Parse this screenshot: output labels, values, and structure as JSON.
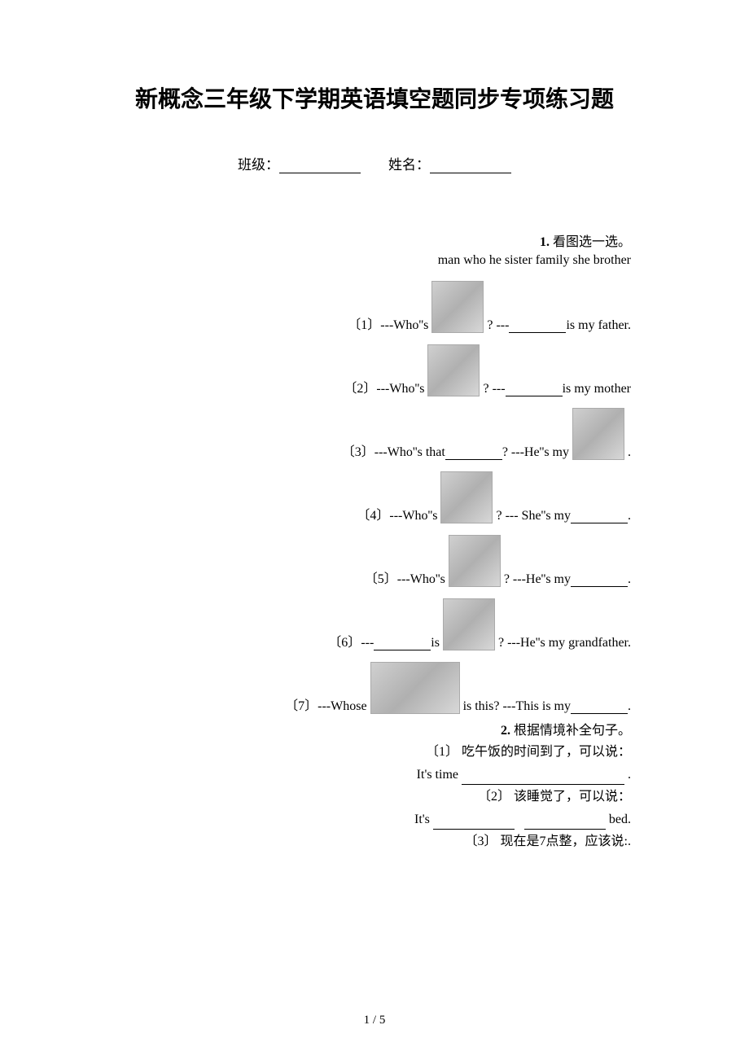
{
  "title": "新概念三年级下学期英语填空题同步专项练习题",
  "class_label": "班级：",
  "name_label": "姓名：",
  "section1": {
    "number": "1.",
    "heading": "看图选一选。",
    "word_bank": "man  who  he  sister  family  she  brother",
    "questions": [
      {
        "num": "〔1〕",
        "text_before": "---Who''s ",
        "text_after": "? ---",
        "text_end": "is my father."
      },
      {
        "num": "〔2〕",
        "text_before": "---Who''s ",
        "text_after": "? ---",
        "text_end": "is my mother"
      },
      {
        "num": "〔3〕",
        "text_before": "---Who''s that",
        "text_mid": "? ---He''s my ",
        "text_end": "."
      },
      {
        "num": "〔4〕",
        "text_before": "---Who''s ",
        "text_after": "? --- She''s my",
        "text_end": "."
      },
      {
        "num": "〔5〕",
        "text_before": "---Who''s ",
        "text_after": "? ---He''s my",
        "text_end": "."
      },
      {
        "num": "〔6〕",
        "text_before": "---",
        "text_mid": "is ",
        "text_after": "?   ---He''s my grandfather."
      },
      {
        "num": "〔7〕",
        "text_before": "---Whose ",
        "text_after": " is this?  ---This is my",
        "text_end": "."
      }
    ]
  },
  "section2": {
    "number": "2.",
    "heading": "根据情境补全句子。",
    "questions": [
      {
        "num": "〔1〕",
        "chinese": "吃午饭的时间到了，可以说：",
        "english_before": "It's time ",
        "english_after": "."
      },
      {
        "num": "〔2〕",
        "chinese": "该睡觉了，可以说：",
        "english_before": "It's ",
        "english_after": " bed."
      },
      {
        "num": "〔3〕",
        "chinese": "现在是7点整，应该说:."
      }
    ]
  },
  "page_num": "1 / 5"
}
